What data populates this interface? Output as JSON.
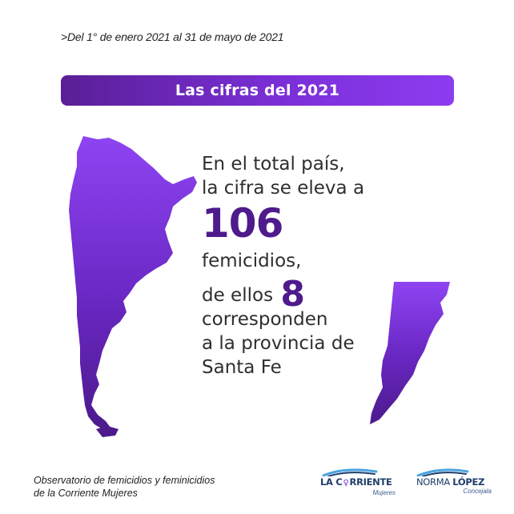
{
  "header": {
    "date_range": ">Del 1° de enero 2021 al 31 de mayo de 2021"
  },
  "banner": {
    "title": "Las cifras del 2021"
  },
  "stats": {
    "line_1": "En el total país,",
    "line_2": "la cifra se eleva a",
    "total_number": "106",
    "line_3": "femicidios,",
    "line_4_prefix": "de ellos",
    "province_number": "8",
    "line_5": "corresponden",
    "line_6": "a la provincia de",
    "line_7": "Santa Fe"
  },
  "footer": {
    "source_line_1": "Observatorio de femicidios y feminicidios",
    "source_line_2": "de la Corriente Mujeres",
    "logo_corriente_a": "LA C",
    "logo_corriente_b": "RRIENTE",
    "logo_corriente_sub": "Mujeres",
    "logo_norma_first": "NORMA ",
    "logo_norma_last": "LÓPEZ",
    "logo_norma_sub": "Concejala"
  },
  "colors": {
    "brand_purple": "#7a2fd6",
    "dark_purple": "#4e1a8c",
    "logo_blue": "#1f3d6b",
    "logo_light_blue": "#4aa3df"
  },
  "icons": {
    "argentina_map": "argentina-map-icon",
    "santafe_map": "santa-fe-map-icon",
    "venus": "venus-symbol-icon"
  }
}
